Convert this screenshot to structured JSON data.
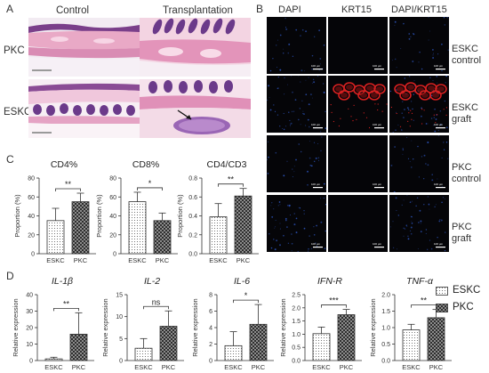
{
  "panel_letters": {
    "a": "A",
    "b": "B",
    "c": "C",
    "d": "D"
  },
  "panel_a": {
    "col_control": "Control",
    "col_transplantation": "Transplantation",
    "row_pkc": "PKC",
    "row_eskc": "ESKC"
  },
  "panel_b": {
    "col_dapi": "DAPI",
    "col_krt15": "KRT15",
    "col_merge": "DAPI/KRT15",
    "scale_label": "100 μm",
    "rows": [
      {
        "line1": "ESKC",
        "line2": "control"
      },
      {
        "line1": "ESKC",
        "line2": "graft"
      },
      {
        "line1": "PKC",
        "line2": "control"
      },
      {
        "line1": "PKC",
        "line2": "graft"
      }
    ]
  },
  "colors": {
    "bar_fill": "#ffffff",
    "bar_stroke": "#333333",
    "krt15": "#d52020",
    "dapi": "#2a4fb0"
  },
  "chart_data": [
    {
      "type": "bar",
      "title": "CD4%",
      "ylabel": "Proportion (%)",
      "categories": [
        "ESKC",
        "PKC"
      ],
      "values": [
        35,
        55
      ],
      "errors": [
        13,
        9
      ],
      "ylim": [
        0,
        80
      ],
      "yticks": [
        "0",
        "20",
        "40",
        "60",
        "80"
      ],
      "sig": "**"
    },
    {
      "type": "bar",
      "title": "CD8%",
      "ylabel": "Proportion (%)",
      "categories": [
        "ESKC",
        "PKC"
      ],
      "values": [
        55,
        35
      ],
      "errors": [
        10,
        8
      ],
      "ylim": [
        0,
        80
      ],
      "yticks": [
        "0",
        "20",
        "40",
        "60",
        "80"
      ],
      "sig": "*"
    },
    {
      "type": "bar",
      "title": "CD4/CD3",
      "ylabel": "Proportion (%)",
      "categories": [
        "ESKC",
        "PKC"
      ],
      "values": [
        0.39,
        0.61
      ],
      "errors": [
        0.14,
        0.08
      ],
      "ylim": [
        0,
        0.8
      ],
      "yticks": [
        "0.0",
        "0.2",
        "0.4",
        "0.6",
        "0.8"
      ],
      "sig": "**"
    },
    {
      "type": "bar",
      "title": "IL-1β",
      "ylabel": "Relative expression",
      "categories": [
        "ESKC",
        "PKC"
      ],
      "values": [
        1,
        16
      ],
      "errors": [
        1,
        13
      ],
      "ylim": [
        0,
        40
      ],
      "yticks": [
        "0",
        "10",
        "20",
        "30",
        "40"
      ],
      "sig": "**"
    },
    {
      "type": "bar",
      "title": "IL-2",
      "ylabel": "Relative expression",
      "categories": [
        "ESKC",
        "PKC"
      ],
      "values": [
        2.8,
        7.8
      ],
      "errors": [
        2.2,
        3.5
      ],
      "ylim": [
        0,
        15
      ],
      "yticks": [
        "0",
        "5",
        "10",
        "15"
      ],
      "sig": "ns"
    },
    {
      "type": "bar",
      "title": "IL-6",
      "ylabel": "Relative expression",
      "categories": [
        "ESKC",
        "PKC"
      ],
      "values": [
        1.8,
        4.4
      ],
      "errors": [
        1.7,
        2.4
      ],
      "ylim": [
        0,
        8
      ],
      "yticks": [
        "0",
        "2",
        "4",
        "6",
        "8"
      ],
      "sig": "*"
    },
    {
      "type": "bar",
      "title": "IFN-R",
      "ylabel": "Relative expression",
      "categories": [
        "ESKC",
        "PKC"
      ],
      "values": [
        1.02,
        1.74
      ],
      "errors": [
        0.25,
        0.2
      ],
      "ylim": [
        0,
        2.5
      ],
      "yticks": [
        "0.0",
        "0.5",
        "1.0",
        "1.5",
        "2.0",
        "2.5"
      ],
      "sig": "***"
    },
    {
      "type": "bar",
      "title": "TNF-α",
      "ylabel": "Relative expression",
      "categories": [
        "ESKC",
        "PKC"
      ],
      "values": [
        0.93,
        1.3
      ],
      "errors": [
        0.17,
        0.25
      ],
      "ylim": [
        0,
        2.0
      ],
      "yticks": [
        "0.0",
        "0.5",
        "1.0",
        "1.5",
        "2.0"
      ],
      "sig": "**"
    }
  ],
  "legend": {
    "eskc": "ESKC",
    "pkc": "PKC"
  }
}
